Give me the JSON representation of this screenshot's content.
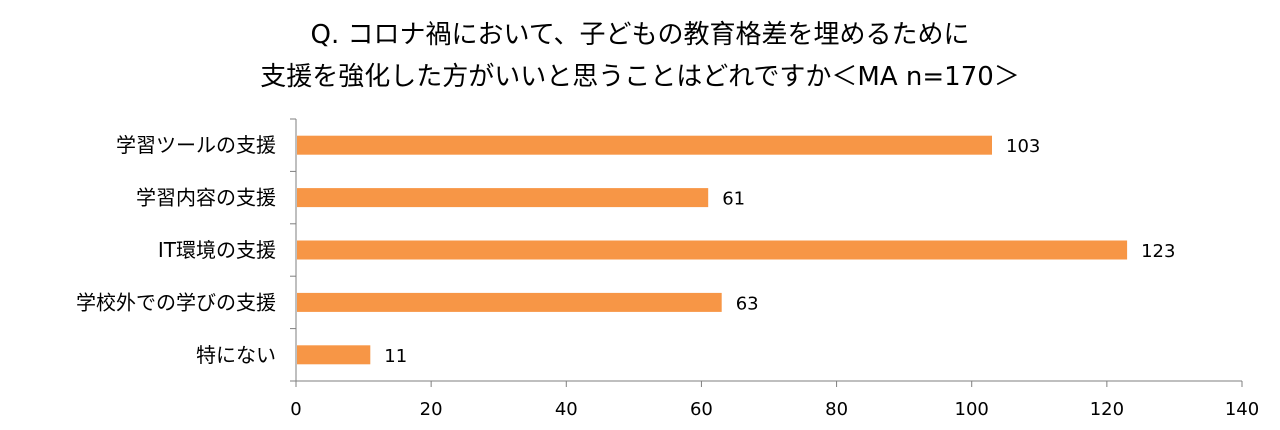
{
  "chart_data": {
    "type": "bar",
    "orientation": "horizontal",
    "title_lines": [
      "Q. コロナ禍において、子どもの教育格差を埋めるために",
      "支援を強化した方がいいと思うことはどれですか＜MA n=170＞"
    ],
    "categories": [
      "学習ツールの支援",
      "学習内容の支援",
      "IT環境の支援",
      "学校外での学びの支援",
      "特にない"
    ],
    "values": [
      103,
      61,
      123,
      63,
      11
    ],
    "data_labels": [
      "103",
      "61",
      "123",
      "63",
      "11"
    ],
    "xlim": [
      0,
      140
    ],
    "xticks": [
      "0",
      "20",
      "40",
      "60",
      "80",
      "100",
      "120",
      "140"
    ],
    "xtick_values": [
      0,
      20,
      40,
      60,
      80,
      100,
      120,
      140
    ],
    "grid": false,
    "legend": "none",
    "bar_color": "#F79646",
    "axis_color": "#7F7F7F"
  }
}
